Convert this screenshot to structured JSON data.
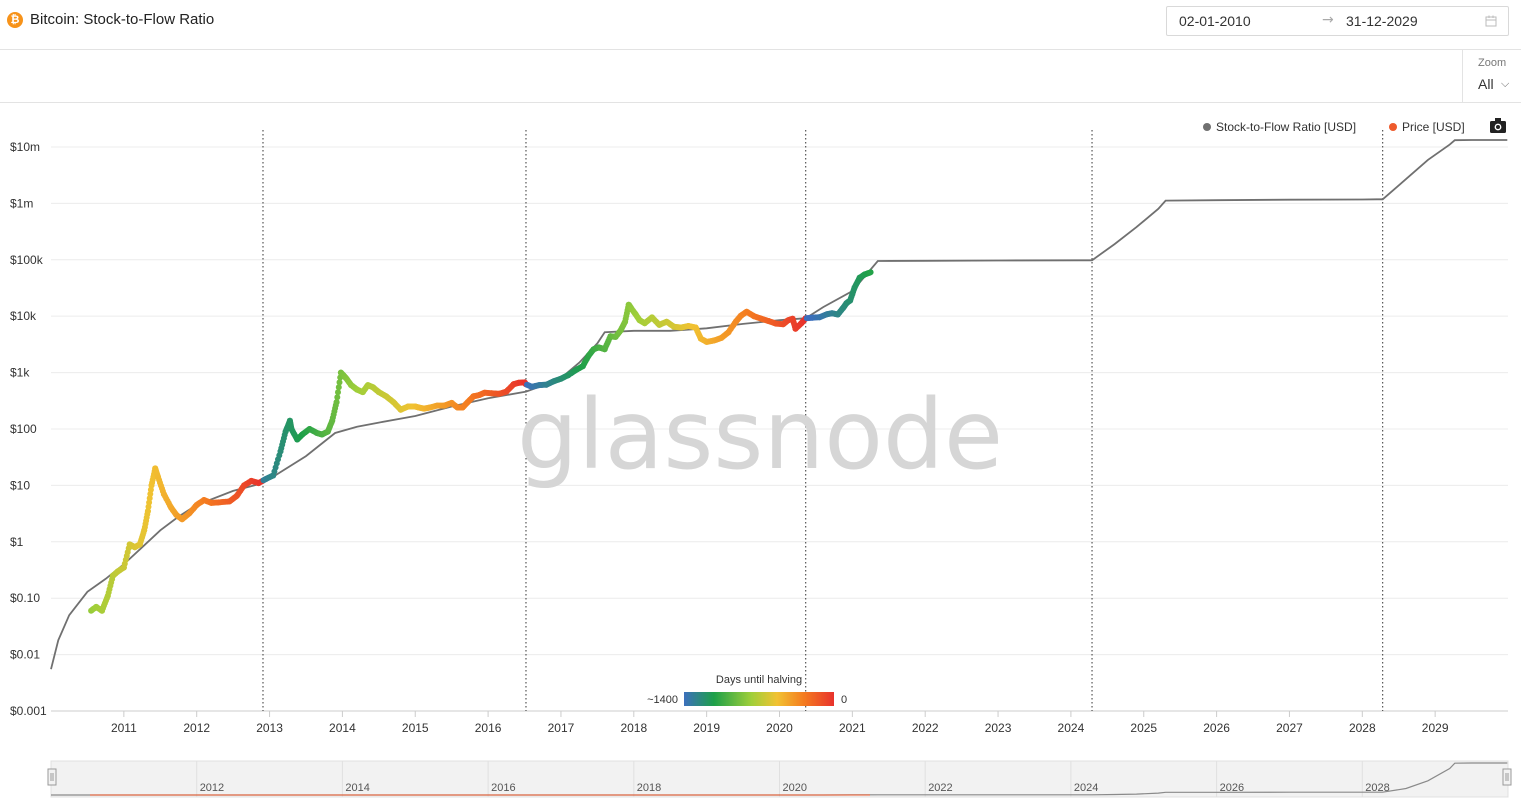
{
  "header": {
    "title": "Bitcoin: Stock-to-Flow Ratio",
    "icon": "bitcoin-icon",
    "date_start": "02-01-2010",
    "date_arrow": "→",
    "date_end": "31-12-2029"
  },
  "toolbar": {
    "zoom_label": "Zoom",
    "zoom_value": "All"
  },
  "watermark": "glassnode",
  "colorbar": {
    "title": "Days until halving",
    "min_label": "~1400",
    "max_label": "0"
  },
  "colors": {
    "s2f_line": "#707070",
    "price_legend": "#ee5a2c",
    "gradient": [
      "#3c6fbd",
      "#1ea049",
      "#a0cf3a",
      "#f1c232",
      "#f47b20",
      "#e8322c"
    ],
    "halving_line": "#333333"
  },
  "chart_data": {
    "type": "line",
    "title": "Bitcoin: Stock-to-Flow Ratio",
    "y_scale": "log",
    "ylim": [
      0.001,
      20000000
    ],
    "xlim": [
      2010.0,
      2030.0
    ],
    "y_ticks": [
      {
        "value": 0.001,
        "label": "$0.001"
      },
      {
        "value": 0.01,
        "label": "$0.01"
      },
      {
        "value": 0.1,
        "label": "$0.10"
      },
      {
        "value": 1,
        "label": "$1"
      },
      {
        "value": 10,
        "label": "$10"
      },
      {
        "value": 100,
        "label": "$100"
      },
      {
        "value": 1000,
        "label": "$1k"
      },
      {
        "value": 10000,
        "label": "$10k"
      },
      {
        "value": 100000,
        "label": "$100k"
      },
      {
        "value": 1000000,
        "label": "$1m"
      },
      {
        "value": 10000000,
        "label": "$10m"
      }
    ],
    "x_ticks": [
      "2011",
      "2012",
      "2013",
      "2014",
      "2015",
      "2016",
      "2017",
      "2018",
      "2019",
      "2020",
      "2021",
      "2022",
      "2023",
      "2024",
      "2025",
      "2026",
      "2027",
      "2028",
      "2029"
    ],
    "navigator_ticks": [
      "2012",
      "2014",
      "2016",
      "2018",
      "2020",
      "2022",
      "2024",
      "2026",
      "2028"
    ],
    "halvings": [
      2012.91,
      2016.52,
      2020.36,
      2024.29,
      2028.28
    ],
    "legend": [
      {
        "name": "Stock-to-Flow Ratio [USD]",
        "color": "#707070"
      },
      {
        "name": "Price [USD]",
        "color": "#ee5a2c"
      }
    ],
    "series": [
      {
        "name": "Stock-to-Flow Ratio [USD]",
        "x": [
          2010.0,
          2010.1,
          2010.25,
          2010.5,
          2010.75,
          2011.0,
          2011.25,
          2011.5,
          2011.75,
          2012.0,
          2012.5,
          2012.91,
          2013.0,
          2013.5,
          2013.9,
          2014.2,
          2014.5,
          2015.0,
          2015.5,
          2016.0,
          2016.52,
          2016.8,
          2017.0,
          2017.25,
          2017.5,
          2017.6,
          2018.0,
          2018.5,
          2019.0,
          2019.5,
          2020.0,
          2020.36,
          2020.6,
          2021.0,
          2021.35,
          2022.0,
          2023.0,
          2024.1,
          2024.29,
          2024.6,
          2024.9,
          2025.2,
          2025.3,
          2026.0,
          2027.0,
          2028.0,
          2028.2,
          2028.28,
          2028.6,
          2028.9,
          2029.2,
          2029.27,
          2029.5,
          2029.99
        ],
        "values": [
          0.0055,
          0.018,
          0.05,
          0.13,
          0.22,
          0.4,
          0.8,
          1.6,
          2.8,
          4.5,
          8,
          11,
          13,
          33,
          85,
          110,
          130,
          170,
          250,
          350,
          460,
          620,
          800,
          1500,
          3300,
          5200,
          5500,
          5500,
          6100,
          7300,
          8500,
          9200,
          14500,
          28000,
          95000,
          96000,
          97000,
          98000,
          98000,
          190000,
          380000,
          800000,
          1120000,
          1140000,
          1160000,
          1170000,
          1180000,
          1180000,
          2700000,
          5900000,
          11000000,
          13200000,
          13300000,
          13300000
        ]
      },
      {
        "name": "Price [USD]",
        "x": [
          2010.55,
          2010.62,
          2010.7,
          2010.78,
          2010.85,
          2010.92,
          2011.0,
          2011.08,
          2011.15,
          2011.22,
          2011.28,
          2011.33,
          2011.38,
          2011.43,
          2011.47,
          2011.55,
          2011.65,
          2011.72,
          2011.8,
          2011.9,
          2012.0,
          2012.1,
          2012.2,
          2012.3,
          2012.45,
          2012.55,
          2012.65,
          2012.75,
          2012.85,
          2012.95,
          2013.05,
          2013.15,
          2013.22,
          2013.28,
          2013.3,
          2013.38,
          2013.45,
          2013.55,
          2013.65,
          2013.72,
          2013.8,
          2013.86,
          2013.92,
          2013.98,
          2014.05,
          2014.12,
          2014.2,
          2014.28,
          2014.35,
          2014.42,
          2014.5,
          2014.6,
          2014.7,
          2014.8,
          2014.9,
          2015.0,
          2015.05,
          2015.12,
          2015.2,
          2015.3,
          2015.4,
          2015.5,
          2015.58,
          2015.65,
          2015.72,
          2015.8,
          2015.88,
          2015.95,
          2016.05,
          2016.15,
          2016.25,
          2016.35,
          2016.42,
          2016.5,
          2016.52,
          2016.6,
          2016.7,
          2016.8,
          2016.9,
          2017.0,
          2017.1,
          2017.2,
          2017.3,
          2017.38,
          2017.45,
          2017.52,
          2017.6,
          2017.68,
          2017.75,
          2017.82,
          2017.88,
          2017.93,
          2017.96,
          2018.02,
          2018.08,
          2018.15,
          2018.25,
          2018.35,
          2018.45,
          2018.55,
          2018.65,
          2018.75,
          2018.85,
          2018.92,
          2019.0,
          2019.1,
          2019.2,
          2019.3,
          2019.4,
          2019.47,
          2019.55,
          2019.65,
          2019.75,
          2019.85,
          2019.95,
          2020.05,
          2020.12,
          2020.18,
          2020.22,
          2020.3,
          2020.36,
          2020.45,
          2020.55,
          2020.65,
          2020.72,
          2020.8,
          2020.87,
          2020.92,
          2020.97,
          2021.03,
          2021.1,
          2021.17,
          2021.25
        ],
        "values": [
          0.06,
          0.07,
          0.06,
          0.11,
          0.25,
          0.3,
          0.35,
          0.9,
          0.8,
          0.9,
          1.6,
          3.5,
          10,
          20,
          14,
          7,
          4,
          3,
          2.5,
          3.2,
          4.5,
          5.5,
          4.9,
          5,
          5.2,
          6.5,
          10,
          12,
          11,
          13,
          15,
          40,
          90,
          140,
          100,
          65,
          80,
          100,
          85,
          80,
          90,
          140,
          300,
          1000,
          800,
          600,
          500,
          450,
          600,
          550,
          450,
          380,
          300,
          220,
          250,
          250,
          240,
          230,
          240,
          260,
          260,
          290,
          240,
          240,
          300,
          380,
          400,
          440,
          430,
          420,
          460,
          620,
          660,
          670,
          620,
          560,
          600,
          610,
          700,
          780,
          900,
          1100,
          1300,
          2000,
          2600,
          2800,
          2600,
          4400,
          4300,
          5600,
          8000,
          16000,
          14000,
          11000,
          8500,
          7500,
          9500,
          7000,
          8000,
          6500,
          6300,
          6700,
          6300,
          4000,
          3500,
          3700,
          4100,
          5200,
          8000,
          10200,
          12000,
          10000,
          9000,
          8200,
          7400,
          7200,
          8500,
          9000,
          6000,
          7500,
          9200,
          9400,
          9600,
          10800,
          11300,
          10700,
          13800,
          17000,
          19000,
          32000,
          48000,
          55000,
          60000
        ],
        "days_until_halving_range": [
          1400,
          0
        ]
      }
    ]
  }
}
